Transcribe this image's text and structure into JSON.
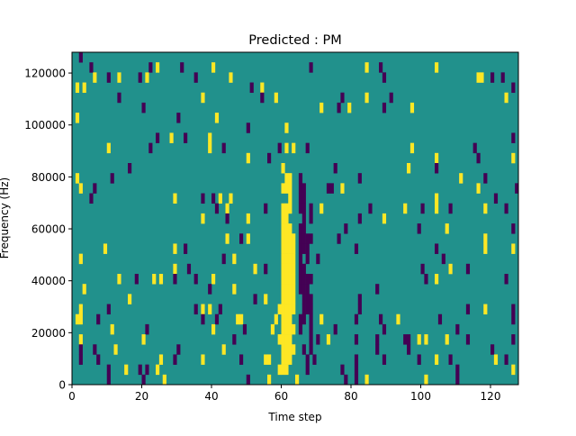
{
  "chart_data": {
    "type": "heatmap",
    "title": "Predicted : PM",
    "xlabel": "Time step",
    "ylabel": "Frequency (Hz)",
    "xlim": [
      0,
      128
    ],
    "ylim": [
      0,
      128000
    ],
    "xticks": [
      0,
      20,
      40,
      60,
      80,
      100,
      120
    ],
    "yticks": [
      0,
      20000,
      40000,
      60000,
      80000,
      100000,
      120000
    ],
    "n_time_steps": 128,
    "n_freq_bins": 33,
    "colors": {
      "background": "#21918c",
      "high": "#fde725",
      "low": "#440154"
    },
    "value_legend": {
      "low": 0,
      "background": 1,
      "high": 2
    },
    "rows_top_to_bottom": [
      {
        "P": [
          2
        ],
        "Y": []
      },
      {
        "P": [
          5,
          22,
          31,
          68,
          88
        ],
        "Y": [
          24,
          40,
          84,
          104
        ]
      },
      {
        "P": [
          10,
          19,
          35,
          89,
          120,
          123
        ],
        "Y": [
          6,
          13,
          21,
          45,
          116,
          117
        ]
      },
      {
        "P": [
          51,
          126
        ],
        "Y": [
          1,
          3,
          54
        ]
      },
      {
        "P": [
          13,
          54,
          77,
          91
        ],
        "Y": [
          37,
          58,
          84,
          124
        ]
      },
      {
        "P": [
          20,
          76,
          89
        ],
        "Y": [
          71,
          79,
          97
        ]
      },
      {
        "P": [
          30
        ],
        "Y": [
          1,
          41
        ]
      },
      {
        "P": [
          50
        ],
        "Y": [
          61
        ]
      },
      {
        "P": [
          24,
          32,
          126
        ],
        "Y": [
          28,
          39
        ]
      },
      {
        "P": [
          22,
          43,
          59,
          67,
          115
        ],
        "Y": [
          10,
          39,
          61,
          63,
          97
        ]
      },
      {
        "P": [
          56,
          116
        ],
        "Y": [
          50,
          104,
          126
        ]
      },
      {
        "P": [
          16,
          75,
          104
        ],
        "Y": [
          60,
          96
        ]
      },
      {
        "P": [
          11,
          65,
          82,
          118
        ],
        "Y": [
          1,
          61,
          62,
          111
        ]
      },
      {
        "P": [
          6,
          65,
          66,
          73,
          74,
          127
        ],
        "Y": [
          2,
          60,
          61,
          62,
          77,
          116
        ]
      },
      {
        "P": [
          5,
          37,
          40,
          65,
          66,
          121
        ],
        "Y": [
          29,
          42,
          45,
          62,
          104
        ]
      },
      {
        "P": [
          41,
          55,
          65,
          66,
          68,
          85,
          100,
          108,
          124
        ],
        "Y": [
          44,
          60,
          61,
          62,
          71,
          95,
          104,
          118
        ]
      },
      {
        "P": [
          44,
          66,
          68,
          82
        ],
        "Y": [
          37,
          50,
          60,
          61,
          89
        ]
      },
      {
        "P": [
          65,
          66,
          78,
          99,
          126
        ],
        "Y": [
          60,
          61,
          62,
          107
        ]
      },
      {
        "P": [
          48,
          65,
          66,
          67,
          68,
          76
        ],
        "Y": [
          44,
          50,
          60,
          61,
          62,
          63,
          118
        ]
      },
      {
        "P": [
          32,
          65,
          66,
          67,
          81,
          104
        ],
        "Y": [
          9,
          29,
          60,
          61,
          62,
          63,
          118,
          126
        ]
      },
      {
        "P": [
          43,
          65,
          67,
          70,
          106
        ],
        "Y": [
          2,
          46,
          60,
          61,
          62,
          63
        ]
      },
      {
        "P": [
          33,
          55,
          65,
          66,
          100,
          113
        ],
        "Y": [
          29,
          52,
          60,
          61,
          62,
          63,
          108
        ]
      },
      {
        "P": [
          18,
          29,
          35,
          65,
          66,
          67,
          68,
          101,
          124
        ],
        "Y": [
          13,
          23,
          25,
          40,
          60,
          61,
          62,
          63,
          104
        ]
      },
      {
        "P": [
          39,
          65,
          66,
          67,
          87
        ],
        "Y": [
          3,
          46,
          60,
          61,
          62,
          63
        ]
      },
      {
        "P": [
          52,
          66,
          67,
          68,
          82
        ],
        "Y": [
          16,
          55,
          60,
          61,
          62,
          63
        ]
      },
      {
        "P": [
          10,
          35,
          42,
          66,
          67,
          68,
          82,
          113,
          126
        ],
        "Y": [
          2,
          37,
          39,
          59,
          60,
          61,
          62,
          63,
          118
        ]
      },
      {
        "P": [
          7,
          37,
          41,
          65,
          66,
          68,
          81,
          88,
          105,
          126
        ],
        "Y": [
          1,
          2,
          47,
          48,
          58,
          60,
          61,
          62,
          71,
          93
        ]
      },
      {
        "P": [
          21,
          49,
          65,
          68,
          75,
          89,
          110
        ],
        "Y": [
          11,
          40,
          57,
          60,
          61,
          62,
          63
        ]
      },
      {
        "P": [
          46,
          68,
          70,
          81,
          87,
          95,
          96,
          113,
          126
        ],
        "Y": [
          2,
          20,
          59,
          60,
          61,
          62,
          73,
          99,
          101,
          107
        ]
      },
      {
        "P": [
          2,
          6,
          30,
          66,
          68,
          87,
          96,
          120
        ],
        "Y": [
          12,
          43,
          60,
          61,
          62,
          63
        ]
      },
      {
        "P": [
          2,
          7,
          29,
          48,
          67,
          69,
          81,
          89,
          99,
          108,
          124
        ],
        "Y": [
          25,
          37,
          55,
          56,
          60,
          61,
          62,
          104,
          121
        ]
      },
      {
        "P": [
          10,
          19,
          21,
          67,
          77,
          81,
          110
        ],
        "Y": [
          15,
          24,
          59,
          60,
          61,
          126
        ]
      },
      {
        "P": [
          10,
          20,
          50,
          78,
          81,
          110
        ],
        "Y": [
          26,
          56,
          64,
          84,
          101
        ]
      }
    ]
  }
}
